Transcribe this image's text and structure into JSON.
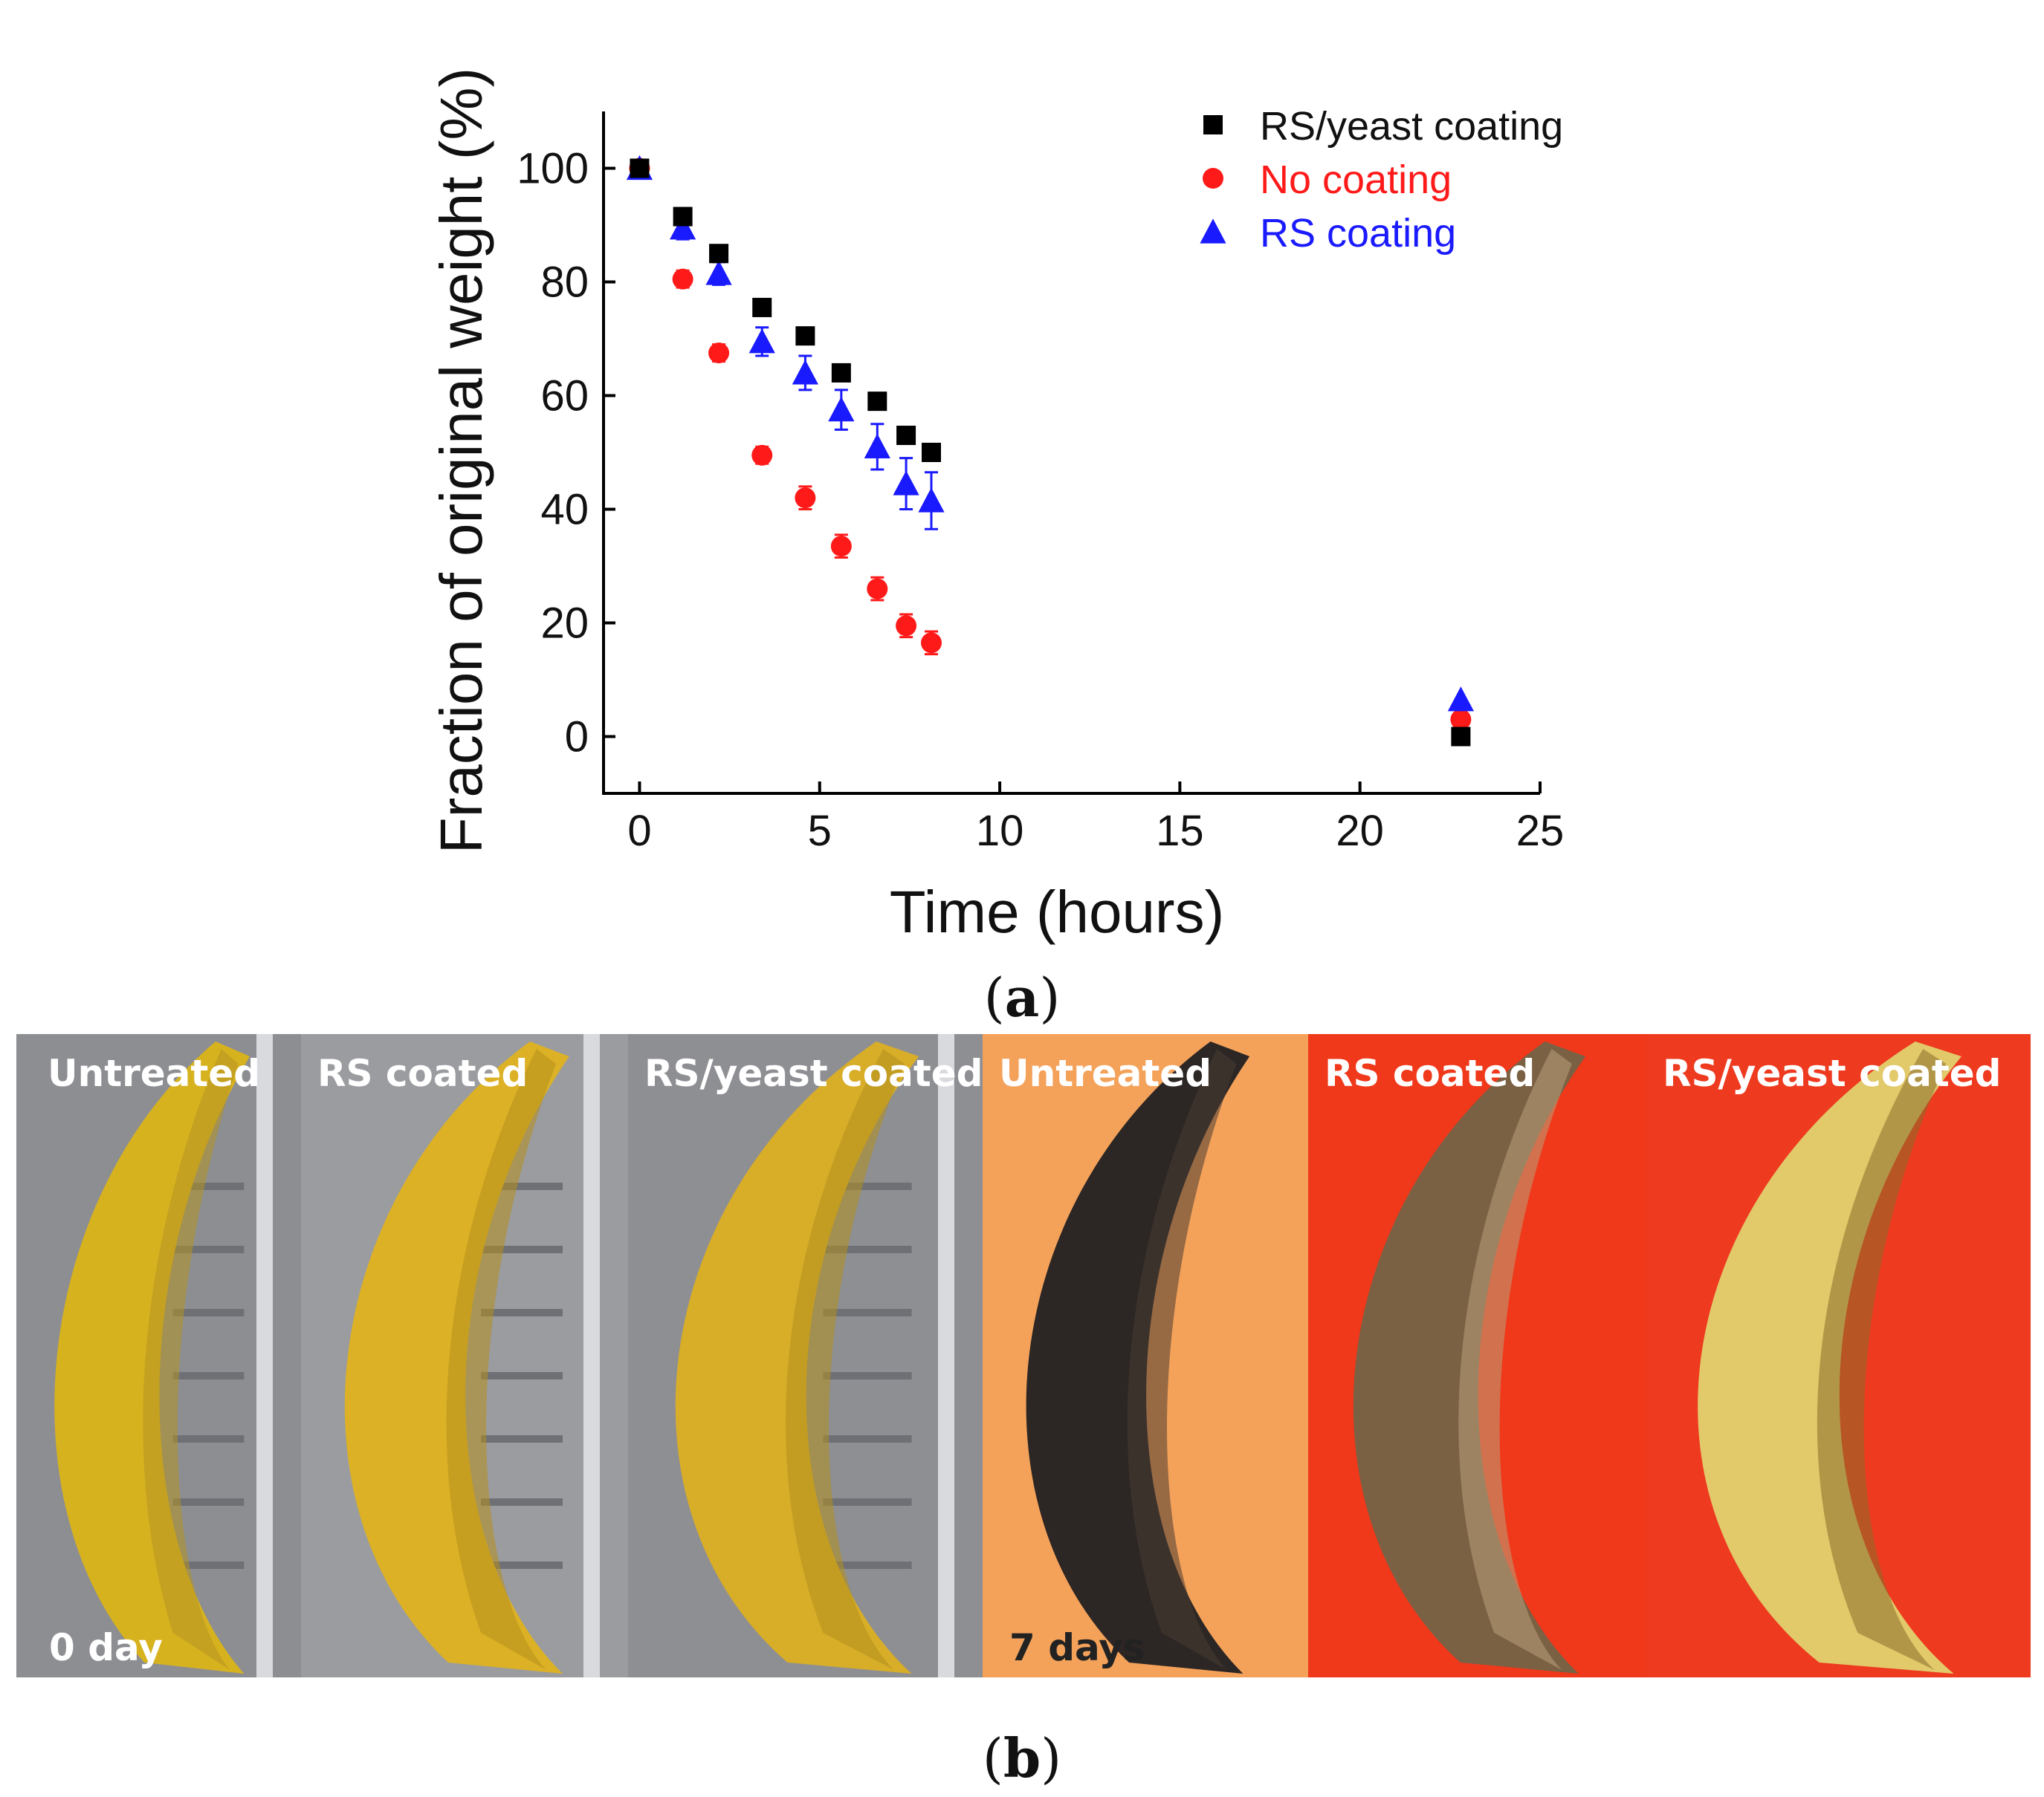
{
  "chart_data": {
    "type": "scatter",
    "title": "",
    "xlabel": "Time (hours)",
    "ylabel": "Fraction of original weight (%)",
    "xlim": [
      -1,
      25
    ],
    "ylim": [
      -10,
      110
    ],
    "xticks": [
      "0",
      "5",
      "10",
      "15",
      "20",
      "25"
    ],
    "xtick_values": [
      0,
      5,
      10,
      15,
      20,
      25
    ],
    "yticks": [
      "0",
      "20",
      "40",
      "60",
      "80",
      "100"
    ],
    "ytick_values": [
      0,
      20,
      40,
      60,
      80,
      100
    ],
    "legend_position": "top-right",
    "series": [
      {
        "name": "RS/yeast coating",
        "marker": "square",
        "color": "#000000",
        "x": [
          0,
          1.2,
          2.2,
          3.4,
          4.6,
          5.6,
          6.6,
          7.4,
          8.1,
          22.8
        ],
        "y": [
          100,
          91.5,
          85,
          75.5,
          70.5,
          64,
          59,
          53,
          50,
          0
        ],
        "err": [
          0.5,
          1,
          1,
          1,
          1,
          1,
          1,
          1,
          1,
          0.5
        ]
      },
      {
        "name": "No coating",
        "marker": "circle",
        "color": "#ff1a1a",
        "x": [
          0,
          1.2,
          2.2,
          3.4,
          4.6,
          5.6,
          6.6,
          7.4,
          8.1,
          22.8
        ],
        "y": [
          100,
          80.5,
          67.5,
          49.5,
          42,
          33.5,
          26,
          19.5,
          16.5,
          3
        ],
        "err": [
          0.5,
          1.5,
          1.5,
          1.5,
          2,
          2,
          2,
          2,
          2,
          0.5
        ]
      },
      {
        "name": "RS coating",
        "marker": "triangle",
        "color": "#1a1aff",
        "x": [
          0,
          1.2,
          2.2,
          3.4,
          4.6,
          5.6,
          6.6,
          7.4,
          8.1,
          22.8
        ],
        "y": [
          100,
          89.5,
          81.5,
          69.5,
          64,
          57.5,
          51,
          44.5,
          41.5,
          6.5
        ],
        "err": [
          0.5,
          2,
          2,
          2.5,
          3,
          3.5,
          4,
          4.5,
          5,
          0.5
        ]
      }
    ]
  },
  "captions": {
    "panel_a": "(a)",
    "panel_a_letter": "a",
    "panel_b_letter": "b"
  },
  "photos": {
    "items": [
      {
        "label": "Untreated",
        "peel": "#d7b21f",
        "bg": "#8c8e92",
        "shade": "#b59320"
      },
      {
        "label": "RS coated",
        "peel": "#dcb126",
        "bg": "#9a9ca0",
        "shade": "#b68f1c"
      },
      {
        "label": "RS/yeast coated",
        "peel": "#d8ad28",
        "bg": "#8e8f93",
        "shade": "#b3901e"
      },
      {
        "label": "Untreated",
        "peel": "#2c2624",
        "bg": "#f4a25a",
        "shade": "#4b3c33"
      },
      {
        "label": "RS coated",
        "peel": "#7a6144",
        "bg": "#f0381a",
        "shade": "#b9a07a"
      },
      {
        "label": "RS/yeast coated",
        "peel": "#e2c96a",
        "bg": "#ee3a1f",
        "shade": "#8a6b2a"
      }
    ],
    "day0_label": "0 day",
    "day7_label": "7 days"
  }
}
